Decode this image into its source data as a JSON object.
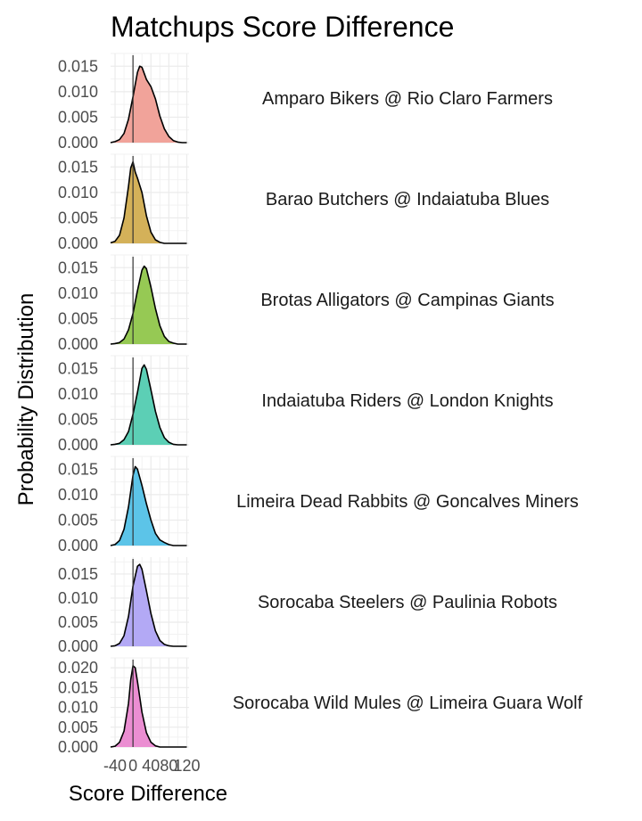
{
  "chart_data": {
    "type": "area",
    "title": "Matchups Score Difference",
    "xlabel": "Score Difference",
    "ylabel": "Probability Distribution",
    "xlim": [
      -50,
      125
    ],
    "x_ticks": [
      -40,
      0,
      40,
      80,
      120
    ],
    "x_tick_labels": [
      "-40",
      "0",
      "40",
      "80",
      "120"
    ],
    "reference_line_x": 0,
    "grid": true,
    "legend": "none",
    "series": [
      {
        "name": "Amparo Bikers @ Rio Claro Farmers",
        "color": "#f1a39a",
        "ylim": [
          0,
          0.0175
        ],
        "y_ticks": [
          0,
          0.005,
          0.01,
          0.015
        ],
        "y_tick_labels": [
          "0.000",
          "0.005",
          "0.010",
          "0.015"
        ],
        "x": [
          -50,
          -40,
          -30,
          -20,
          -10,
          0,
          10,
          15,
          20,
          30,
          40,
          50,
          60,
          70,
          80,
          90,
          100,
          110,
          120
        ],
        "y": [
          0.0,
          0.0002,
          0.0006,
          0.0018,
          0.0046,
          0.009,
          0.0138,
          0.015,
          0.0148,
          0.0124,
          0.011,
          0.0086,
          0.0052,
          0.0027,
          0.0012,
          0.0004,
          0.0001,
          0.0,
          0.0
        ]
      },
      {
        "name": "Barao Butchers @ Indaiatuba Blues",
        "color": "#d4b159",
        "ylim": [
          0,
          0.0175
        ],
        "y_ticks": [
          0,
          0.005,
          0.01,
          0.015
        ],
        "y_tick_labels": [
          "0.000",
          "0.005",
          "0.010",
          "0.015"
        ],
        "x": [
          -50,
          -40,
          -30,
          -20,
          -10,
          -5,
          0,
          5,
          10,
          20,
          30,
          40,
          50,
          60,
          70,
          80,
          90,
          100,
          110,
          120
        ],
        "y": [
          0.0001,
          0.0004,
          0.0016,
          0.005,
          0.0112,
          0.0148,
          0.016,
          0.014,
          0.0128,
          0.01,
          0.0054,
          0.0022,
          0.0007,
          0.0002,
          0.0,
          0.0,
          0.0,
          0.0,
          0.0,
          0.0
        ]
      },
      {
        "name": "Brotas Alligators @ Campinas Giants",
        "color": "#96c954",
        "ylim": [
          0,
          0.0175
        ],
        "y_ticks": [
          0,
          0.005,
          0.01,
          0.015
        ],
        "y_tick_labels": [
          "0.000",
          "0.005",
          "0.010",
          "0.015"
        ],
        "x": [
          -50,
          -40,
          -30,
          -20,
          -10,
          0,
          10,
          20,
          25,
          30,
          40,
          50,
          60,
          70,
          80,
          90,
          100,
          110,
          120
        ],
        "y": [
          0.0,
          0.0001,
          0.0003,
          0.001,
          0.0028,
          0.006,
          0.0105,
          0.0145,
          0.0153,
          0.0148,
          0.0112,
          0.007,
          0.0036,
          0.0015,
          0.0005,
          0.0002,
          0.0,
          0.0,
          0.0
        ]
      },
      {
        "name": "Indaiatuba Riders @ London Knights",
        "color": "#5ccfb5",
        "ylim": [
          0,
          0.0175
        ],
        "y_ticks": [
          0,
          0.005,
          0.01,
          0.015
        ],
        "y_tick_labels": [
          "0.000",
          "0.005",
          "0.010",
          "0.015"
        ],
        "x": [
          -50,
          -40,
          -30,
          -20,
          -10,
          0,
          10,
          20,
          25,
          30,
          40,
          50,
          60,
          70,
          80,
          90,
          100,
          110,
          120
        ],
        "y": [
          0.0,
          0.0001,
          0.0003,
          0.001,
          0.0026,
          0.006,
          0.0103,
          0.015,
          0.0157,
          0.0148,
          0.0108,
          0.0066,
          0.0034,
          0.0014,
          0.0005,
          0.0001,
          0.0,
          0.0,
          0.0
        ]
      },
      {
        "name": "Limeira Dead Rabbits @ Goncalves Miners",
        "color": "#5cc4e8",
        "ylim": [
          0,
          0.0175
        ],
        "y_ticks": [
          0,
          0.005,
          0.01,
          0.015
        ],
        "y_tick_labels": [
          "0.000",
          "0.005",
          "0.010",
          "0.015"
        ],
        "x": [
          -50,
          -40,
          -30,
          -20,
          -10,
          0,
          5,
          10,
          20,
          30,
          40,
          50,
          60,
          70,
          80,
          90,
          100,
          110,
          120
        ],
        "y": [
          0.0,
          0.0002,
          0.001,
          0.0032,
          0.0076,
          0.0138,
          0.0155,
          0.015,
          0.0118,
          0.0082,
          0.005,
          0.0024,
          0.0011,
          0.0006,
          0.0002,
          0.0,
          0.0,
          0.0,
          0.0
        ]
      },
      {
        "name": "Sorocaba Steelers @ Paulinia Robots",
        "color": "#b3a9f5",
        "ylim": [
          0,
          0.0185
        ],
        "y_ticks": [
          0,
          0.005,
          0.01,
          0.015
        ],
        "y_tick_labels": [
          "0.000",
          "0.005",
          "0.010",
          "0.015"
        ],
        "x": [
          -50,
          -40,
          -30,
          -20,
          -10,
          0,
          10,
          15,
          20,
          30,
          40,
          50,
          60,
          70,
          80,
          90,
          100,
          110,
          120
        ],
        "y": [
          0.0,
          0.0001,
          0.0006,
          0.0022,
          0.0062,
          0.0125,
          0.0166,
          0.017,
          0.016,
          0.0115,
          0.0068,
          0.0032,
          0.0012,
          0.0004,
          0.0001,
          0.0,
          0.0,
          0.0,
          0.0
        ]
      },
      {
        "name": "Sorocaba Wild Mules @ Limeira Guara Wolf",
        "color": "#eb8ed2",
        "ylim": [
          0,
          0.0225
        ],
        "y_ticks": [
          0,
          0.005,
          0.01,
          0.015,
          0.02
        ],
        "y_tick_labels": [
          "0.000",
          "0.005",
          "0.010",
          "0.015",
          "0.020"
        ],
        "x": [
          -50,
          -40,
          -30,
          -20,
          -10,
          -5,
          0,
          5,
          10,
          20,
          30,
          40,
          50,
          60,
          70,
          80,
          90,
          100,
          110,
          120
        ],
        "y": [
          0.0,
          0.0002,
          0.0012,
          0.004,
          0.011,
          0.017,
          0.0205,
          0.02,
          0.0165,
          0.0088,
          0.0036,
          0.0012,
          0.0003,
          0.0,
          0.0,
          0.0,
          0.0,
          0.0,
          0.0,
          0.0
        ]
      }
    ]
  }
}
